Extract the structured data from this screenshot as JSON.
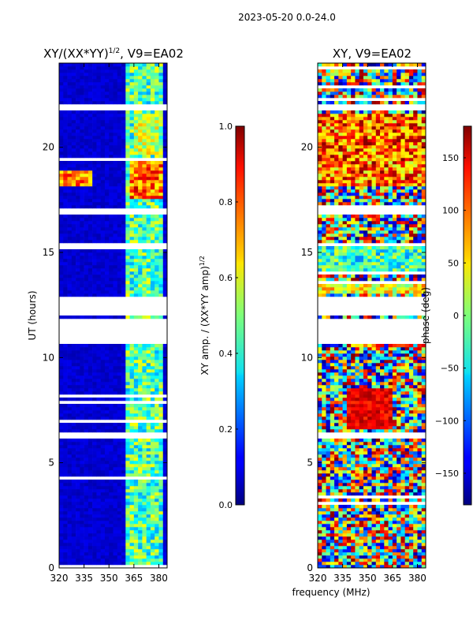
{
  "figure": {
    "suptitle": "2023-05-20 0.0-24.0",
    "xlabel": "frequency (MHz)",
    "ylabel": "UT (hours)"
  },
  "chart_data": [
    {
      "type": "heatmap",
      "title_prefix": "XY/(XX*YY)",
      "title_sup": "1/2",
      "title_suffix": ", V9=EA02",
      "xlim": [
        320,
        385
      ],
      "ylim": [
        0,
        24
      ],
      "xticks": [
        "320",
        "335",
        "350",
        "365",
        "380"
      ],
      "yticks": [
        "0",
        "5",
        "10",
        "15",
        "20"
      ],
      "colorbar": {
        "label_main": "XY amp. / (XX*YY amp)",
        "label_sup": "1/2",
        "range": [
          0.0,
          1.0
        ],
        "ticks": [
          "0.0",
          "0.2",
          "0.4",
          "0.6",
          "0.8",
          "1.0"
        ]
      }
    },
    {
      "type": "heatmap",
      "title_prefix": "XY, V9=EA02",
      "title_sup": "",
      "title_suffix": "",
      "xlim": [
        320,
        385
      ],
      "ylim": [
        0,
        24
      ],
      "xticks": [
        "320",
        "335",
        "350",
        "365",
        "380"
      ],
      "yticks": [
        "0",
        "5",
        "10",
        "15",
        "20"
      ],
      "colorbar": {
        "label_main": "phase (deg)",
        "label_sup": "",
        "range": [
          -180,
          180
        ],
        "ticks": [
          "−150",
          "−100",
          "−50",
          "0",
          "50",
          "100",
          "150"
        ]
      }
    }
  ]
}
